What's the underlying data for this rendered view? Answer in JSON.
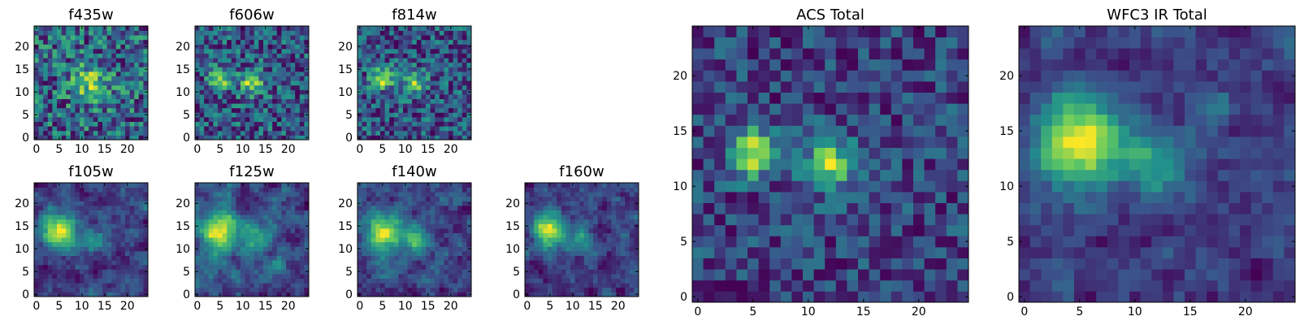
{
  "colormap": [
    "#440154",
    "#3b528b",
    "#21918c",
    "#5ec962",
    "#fde725"
  ],
  "chart_data": [
    {
      "type": "heatmap",
      "title": "f435w",
      "grid": false,
      "xlim": [
        0,
        25
      ],
      "ylim": [
        0,
        25
      ],
      "xticks": [
        0,
        5,
        10,
        15,
        20
      ],
      "yticks": [
        0,
        5,
        10,
        15,
        20
      ],
      "resolution": 25,
      "sources": [
        {
          "x": 12,
          "y": 12,
          "sigma": 3,
          "amp": 0.6
        }
      ],
      "background": 0.55,
      "noise": 0.45,
      "seed": 11
    },
    {
      "type": "heatmap",
      "title": "f606w",
      "grid": false,
      "xlim": [
        0,
        25
      ],
      "ylim": [
        0,
        25
      ],
      "xticks": [
        0,
        5,
        10,
        15,
        20
      ],
      "yticks": [
        0,
        5,
        10,
        15,
        20
      ],
      "resolution": 25,
      "sources": [
        {
          "x": 5,
          "y": 13,
          "sigma": 1.6,
          "amp": 0.9
        },
        {
          "x": 12,
          "y": 12,
          "sigma": 1.8,
          "amp": 0.8
        }
      ],
      "background": 0.45,
      "noise": 0.4,
      "seed": 23
    },
    {
      "type": "heatmap",
      "title": "f814w",
      "grid": false,
      "xlim": [
        0,
        25
      ],
      "ylim": [
        0,
        25
      ],
      "xticks": [
        0,
        5,
        10,
        15,
        20
      ],
      "yticks": [
        0,
        5,
        10,
        15,
        20
      ],
      "resolution": 25,
      "sources": [
        {
          "x": 5,
          "y": 13,
          "sigma": 1.7,
          "amp": 0.9
        },
        {
          "x": 12,
          "y": 12,
          "sigma": 1.8,
          "amp": 0.7
        }
      ],
      "background": 0.45,
      "noise": 0.4,
      "seed": 37
    },
    {
      "type": "heatmap",
      "title": "f105w",
      "grid": false,
      "xlim": [
        0,
        25
      ],
      "ylim": [
        0,
        25
      ],
      "xticks": [
        0,
        5,
        10,
        15,
        20
      ],
      "yticks": [
        0,
        5,
        10,
        15,
        20
      ],
      "resolution": 25,
      "sources": [
        {
          "x": 5,
          "y": 14,
          "sigma": 2.6,
          "amp": 0.8
        },
        {
          "x": 13,
          "y": 12,
          "sigma": 2,
          "amp": 0.35
        }
      ],
      "background": 0.45,
      "noise": 0.3,
      "smooth": 1,
      "seed": 41
    },
    {
      "type": "heatmap",
      "title": "f125w",
      "grid": false,
      "xlim": [
        0,
        25
      ],
      "ylim": [
        0,
        25
      ],
      "xticks": [
        0,
        5,
        10,
        15,
        20
      ],
      "yticks": [
        0,
        5,
        10,
        15,
        20
      ],
      "resolution": 25,
      "sources": [
        {
          "x": 5,
          "y": 14,
          "sigma": 2.5,
          "amp": 0.7
        },
        {
          "x": 13,
          "y": 12,
          "sigma": 2,
          "amp": 0.35
        }
      ],
      "background": 0.5,
      "noise": 0.35,
      "smooth": 1,
      "seed": 53
    },
    {
      "type": "heatmap",
      "title": "f140w",
      "grid": false,
      "xlim": [
        0,
        25
      ],
      "ylim": [
        0,
        25
      ],
      "xticks": [
        0,
        5,
        10,
        15,
        20
      ],
      "yticks": [
        0,
        5,
        10,
        15,
        20
      ],
      "resolution": 25,
      "sources": [
        {
          "x": 5,
          "y": 14,
          "sigma": 2.8,
          "amp": 0.7
        },
        {
          "x": 12,
          "y": 12,
          "sigma": 2.2,
          "amp": 0.4
        }
      ],
      "background": 0.5,
      "noise": 0.3,
      "smooth": 1,
      "seed": 67
    },
    {
      "type": "heatmap",
      "title": "f160w",
      "grid": false,
      "xlim": [
        0,
        25
      ],
      "ylim": [
        0,
        25
      ],
      "xticks": [
        0,
        5,
        10,
        15,
        20
      ],
      "yticks": [
        0,
        5,
        10,
        15,
        20
      ],
      "resolution": 25,
      "sources": [
        {
          "x": 5,
          "y": 14,
          "sigma": 2.4,
          "amp": 0.85
        },
        {
          "x": 12,
          "y": 12,
          "sigma": 2,
          "amp": 0.35
        }
      ],
      "background": 0.45,
      "noise": 0.3,
      "smooth": 1,
      "seed": 79
    },
    {
      "type": "heatmap",
      "title": "ACS Total",
      "grid": false,
      "xlim": [
        0,
        25
      ],
      "ylim": [
        0,
        25
      ],
      "xticks": [
        0,
        5,
        10,
        15,
        20
      ],
      "yticks": [
        0,
        5,
        10,
        15,
        20
      ],
      "resolution": 25,
      "sources": [
        {
          "x": 5,
          "y": 13,
          "sigma": 1.5,
          "amp": 0.75
        },
        {
          "x": 12,
          "y": 12,
          "sigma": 1.6,
          "amp": 0.7
        }
      ],
      "background": 0.5,
      "noise": 0.22,
      "seed": 97
    },
    {
      "type": "heatmap",
      "title": "WFC3 IR Total",
      "grid": false,
      "xlim": [
        0,
        25
      ],
      "ylim": [
        0,
        25
      ],
      "xticks": [
        0,
        5,
        10,
        15,
        20
      ],
      "yticks": [
        0,
        5,
        10,
        15,
        20
      ],
      "resolution": 25,
      "sources": [
        {
          "x": 5,
          "y": 14,
          "sigma": 2.6,
          "amp": 0.75
        },
        {
          "x": 12,
          "y": 12,
          "sigma": 1.8,
          "amp": 0.35
        },
        {
          "x": 17,
          "y": 17,
          "sigma": 0.8,
          "amp": 0.3
        }
      ],
      "background": 0.45,
      "noise": 0.18,
      "smooth": 1,
      "seed": 113
    }
  ]
}
